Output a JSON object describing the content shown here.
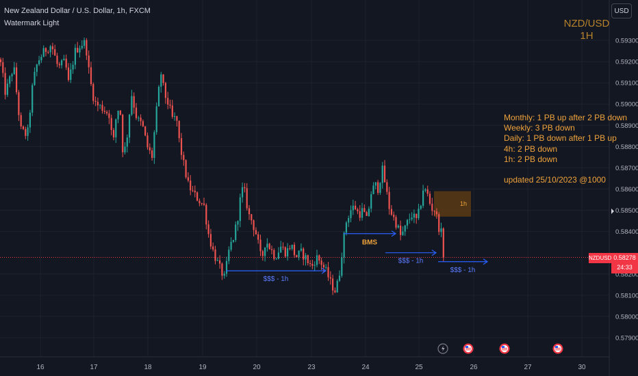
{
  "header": {
    "title": "New Zealand Dollar / U.S. Dollar, 1h, FXCM",
    "subtitle": "Watermark Light"
  },
  "currency_button": "USD",
  "watermark": {
    "line1": "NZD/USD",
    "line2": "1H"
  },
  "notes": [
    "Monthly: 1 PB up after 2 PB down",
    "Weekly: 3 PB down",
    "Daily: 1 PB down after 1 PB up",
    "4h: 2 PB down",
    "1h: 2 PB down"
  ],
  "updated": "updated 25/10/2023 @1000",
  "price_tag": {
    "symbol": "NZDUSD",
    "price": "0.58278",
    "countdown": "24:33"
  },
  "colors": {
    "background": "#131722",
    "up": "#26a69a",
    "down": "#ef5350",
    "annotation_blue": "#2962ff",
    "annotation_orange": "#f0a33b",
    "zone_fill": "#5b3b14",
    "price_line": "#f23645",
    "grid": "#1e222d"
  },
  "event_icons": [
    "flash-icon",
    "us-flag-icon",
    "us-flag-icon",
    "us-flag-icon"
  ],
  "chart_data": {
    "type": "candlestick",
    "symbol": "NZDUSD",
    "interval": "1h",
    "ylim": [
      0.5784,
      0.5942
    ],
    "y_ticks": [
      "0.59300",
      "0.59200",
      "0.59100",
      "0.59000",
      "0.58900",
      "0.58800",
      "0.58700",
      "0.58600",
      "0.58500",
      "0.58400",
      "0.58200",
      "0.58100",
      "0.58000",
      "0.57900"
    ],
    "x_ticks": [
      "16",
      "17",
      "18",
      "19",
      "20",
      "23",
      "24",
      "25",
      "26",
      "27",
      "30"
    ],
    "last_price": 0.58278,
    "path": [
      [
        0,
        0.5921
      ],
      [
        8,
        0.5905
      ],
      [
        20,
        0.5918
      ],
      [
        30,
        0.5888
      ],
      [
        40,
        0.5885
      ],
      [
        48,
        0.591
      ],
      [
        55,
        0.592
      ],
      [
        65,
        0.5925
      ],
      [
        75,
        0.5928
      ],
      [
        85,
        0.5917
      ],
      [
        95,
        0.592
      ],
      [
        100,
        0.591
      ],
      [
        110,
        0.5925
      ],
      [
        118,
        0.5928
      ],
      [
        125,
        0.5929
      ],
      [
        130,
        0.5915
      ],
      [
        135,
        0.5905
      ],
      [
        140,
        0.59
      ],
      [
        150,
        0.5898
      ],
      [
        160,
        0.5895
      ],
      [
        165,
        0.588
      ],
      [
        170,
        0.5895
      ],
      [
        175,
        0.59
      ],
      [
        180,
        0.5875
      ],
      [
        185,
        0.5883
      ],
      [
        192,
        0.5905
      ],
      [
        200,
        0.5893
      ],
      [
        208,
        0.589
      ],
      [
        215,
        0.588
      ],
      [
        222,
        0.5875
      ],
      [
        228,
        0.5895
      ],
      [
        235,
        0.5915
      ],
      [
        240,
        0.5905
      ],
      [
        246,
        0.59
      ],
      [
        252,
        0.5893
      ],
      [
        258,
        0.5893
      ],
      [
        262,
        0.5882
      ],
      [
        268,
        0.5872
      ],
      [
        275,
        0.5862
      ],
      [
        282,
        0.5858
      ],
      [
        290,
        0.5855
      ],
      [
        298,
        0.5852
      ],
      [
        305,
        0.5838
      ],
      [
        312,
        0.583
      ],
      [
        318,
        0.5825
      ],
      [
        322,
        0.5822
      ],
      [
        328,
        0.5818
      ],
      [
        335,
        0.5832
      ],
      [
        342,
        0.5838
      ],
      [
        348,
        0.5848
      ],
      [
        353,
        0.586
      ],
      [
        358,
        0.5858
      ],
      [
        363,
        0.5848
      ],
      [
        368,
        0.5845
      ],
      [
        375,
        0.5838
      ],
      [
        382,
        0.5826
      ],
      [
        388,
        0.5836
      ],
      [
        395,
        0.5832
      ],
      [
        402,
        0.5828
      ],
      [
        410,
        0.5833
      ],
      [
        418,
        0.583
      ],
      [
        425,
        0.5834
      ],
      [
        432,
        0.5828
      ],
      [
        440,
        0.583
      ],
      [
        448,
        0.5827
      ],
      [
        455,
        0.5823
      ],
      [
        462,
        0.5828
      ],
      [
        470,
        0.5825
      ],
      [
        478,
        0.582
      ],
      [
        484,
        0.5815
      ],
      [
        490,
        0.5812
      ],
      [
        495,
        0.5818
      ],
      [
        500,
        0.5832
      ],
      [
        506,
        0.5845
      ],
      [
        512,
        0.585
      ],
      [
        518,
        0.5852
      ],
      [
        524,
        0.5848
      ],
      [
        530,
        0.585
      ],
      [
        536,
        0.5845
      ],
      [
        542,
        0.5858
      ],
      [
        548,
        0.5862
      ],
      [
        553,
        0.586
      ],
      [
        558,
        0.587
      ],
      [
        563,
        0.5862
      ],
      [
        568,
        0.5852
      ],
      [
        574,
        0.5847
      ],
      [
        580,
        0.5843
      ],
      [
        585,
        0.5838
      ],
      [
        590,
        0.584
      ],
      [
        596,
        0.5845
      ],
      [
        602,
        0.5848
      ],
      [
        608,
        0.5845
      ],
      [
        613,
        0.585
      ],
      [
        618,
        0.586
      ],
      [
        624,
        0.5858
      ],
      [
        630,
        0.5851
      ],
      [
        636,
        0.585
      ],
      [
        640,
        0.5843
      ],
      [
        646,
        0.5838
      ],
      [
        649,
        0.58278
      ]
    ],
    "annotations": [
      {
        "text": "$$$ - 1h",
        "from": [
          330,
          0.58215
        ],
        "to": [
          476,
          0.58215
        ],
        "color": "#2962ff"
      },
      {
        "text": "BMS",
        "from": [
          502,
          0.5839
        ],
        "to": [
          578,
          0.5839
        ],
        "color": "#2962ff",
        "label_color": "#f0a33b"
      },
      {
        "text": "$$$ - 1h",
        "from": [
          563,
          0.583
        ],
        "to": [
          637,
          0.583
        ],
        "color": "#2962ff"
      },
      {
        "text": "$$$ - 1h",
        "from": [
          640,
          0.58258
        ],
        "to": [
          712,
          0.58258
        ],
        "color": "#2962ff"
      }
    ],
    "zone": {
      "label": "1h",
      "x1": 634,
      "x2": 688,
      "ymin": 0.5847,
      "ymax": 0.5859
    }
  }
}
